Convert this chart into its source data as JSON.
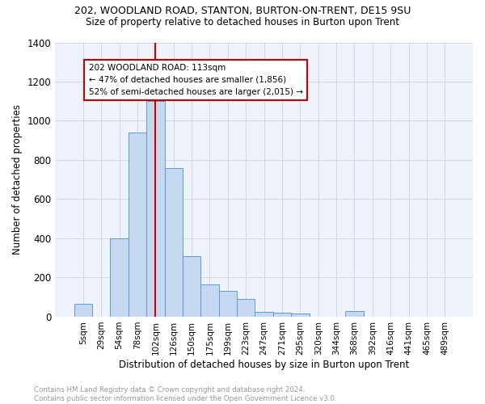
{
  "title": "202, WOODLAND ROAD, STANTON, BURTON-ON-TRENT, DE15 9SU",
  "subtitle": "Size of property relative to detached houses in Burton upon Trent",
  "xlabel": "Distribution of detached houses by size in Burton upon Trent",
  "ylabel": "Number of detached properties",
  "footnote": "Contains HM Land Registry data © Crown copyright and database right 2024.\nContains public sector information licensed under the Open Government Licence v3.0.",
  "bar_color": "#c5d8f0",
  "bar_edge_color": "#5b9bd5",
  "grid_color": "#d0d8e4",
  "bg_color": "#eef2fa",
  "categories": [
    "5sqm",
    "29sqm",
    "54sqm",
    "78sqm",
    "102sqm",
    "126sqm",
    "150sqm",
    "175sqm",
    "199sqm",
    "223sqm",
    "247sqm",
    "271sqm",
    "295sqm",
    "320sqm",
    "344sqm",
    "368sqm",
    "392sqm",
    "416sqm",
    "441sqm",
    "465sqm",
    "489sqm"
  ],
  "values": [
    65,
    0,
    400,
    940,
    1100,
    760,
    310,
    165,
    130,
    90,
    25,
    20,
    15,
    0,
    0,
    30,
    0,
    0,
    0,
    0,
    0
  ],
  "property_line_color": "#cc0000",
  "property_bin_index": 4,
  "annotation_title": "202 WOODLAND ROAD: 113sqm",
  "annotation_line1": "← 47% of detached houses are smaller (1,856)",
  "annotation_line2": "52% of semi-detached houses are larger (2,015) →",
  "annotation_box_color": "#cc0000",
  "ylim": [
    0,
    1400
  ],
  "yticks": [
    0,
    200,
    400,
    600,
    800,
    1000,
    1200,
    1400
  ],
  "title_fontsize": 9,
  "subtitle_fontsize": 8.5
}
